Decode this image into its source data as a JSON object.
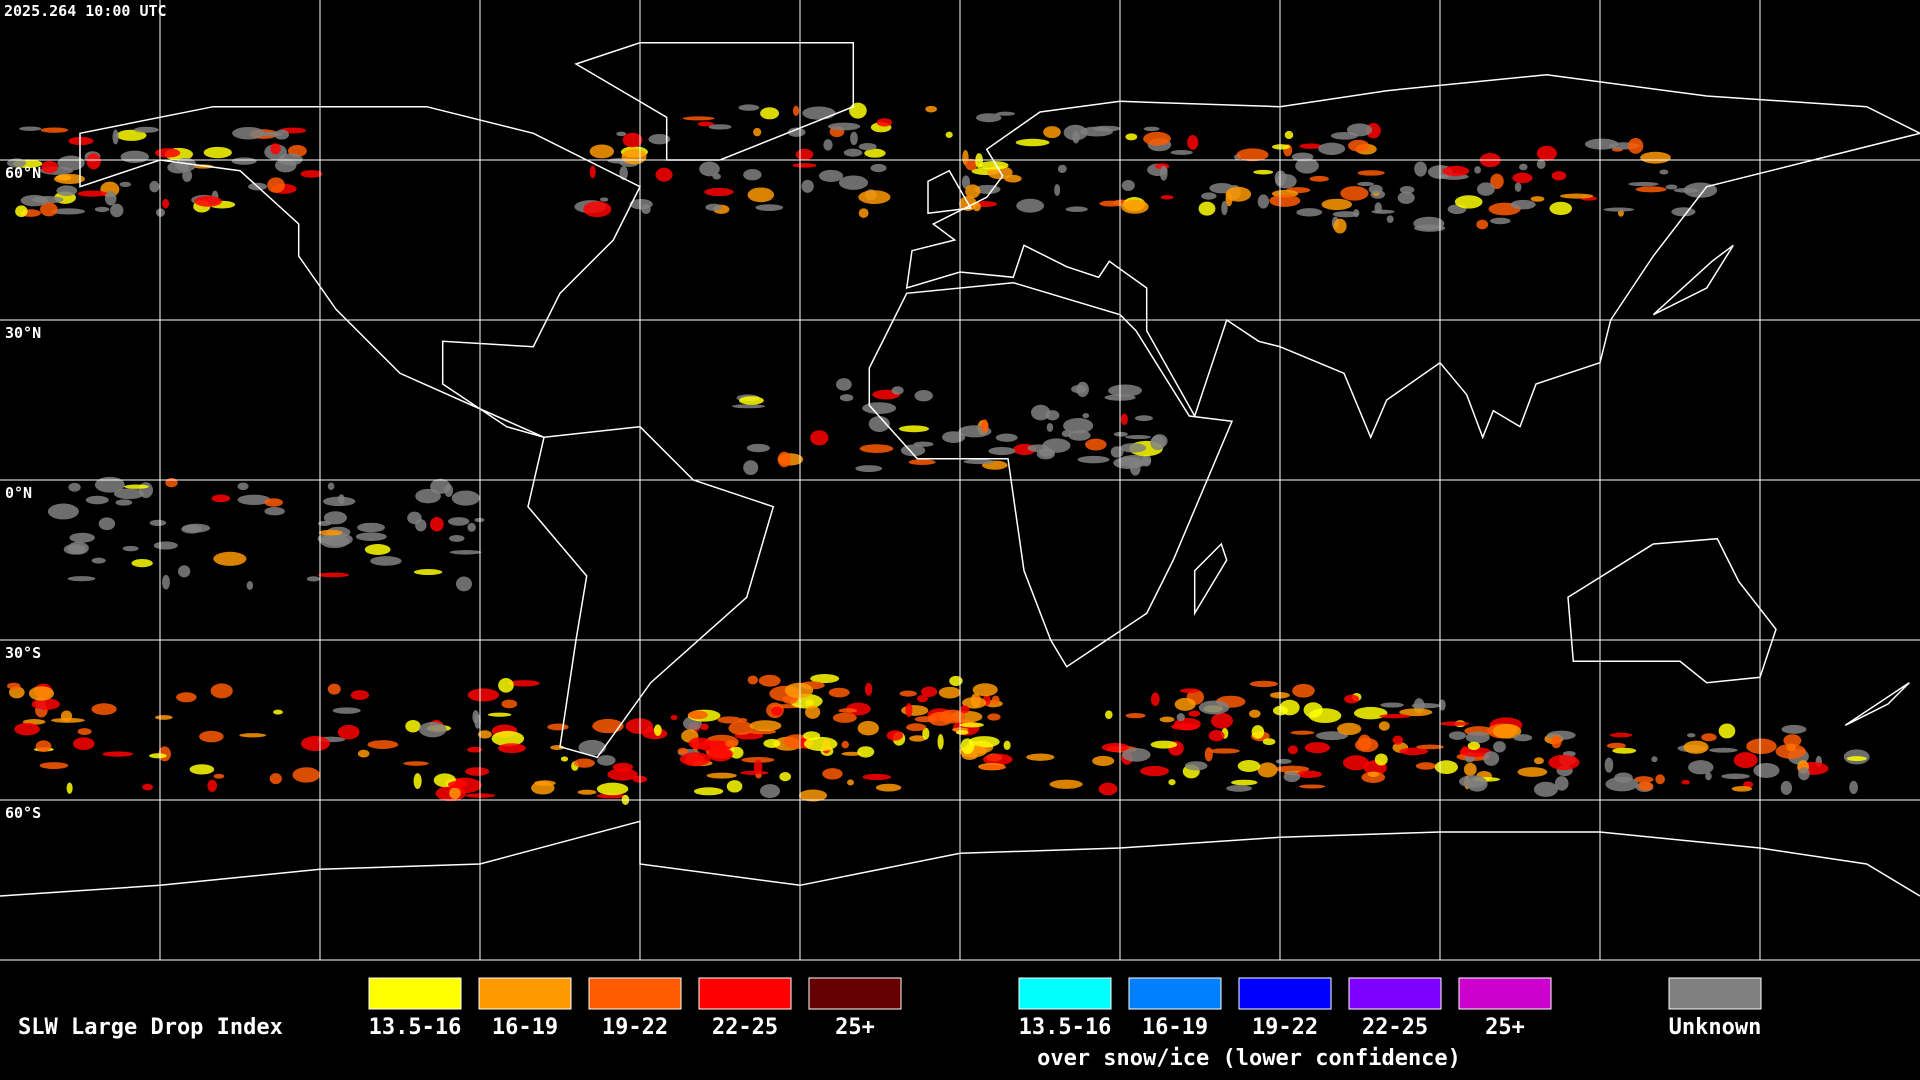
{
  "header": {
    "timestamp": "2025.264 10:00 UTC"
  },
  "latitude_labels": [
    "60°N",
    "30°N",
    "0°N",
    "30°S",
    "60°S"
  ],
  "legend": {
    "title": "SLW Large Drop Index",
    "groups": [
      {
        "items": [
          {
            "label": "13.5-16",
            "color": "#ffff00"
          },
          {
            "label": "16-19",
            "color": "#ff9900"
          },
          {
            "label": "19-22",
            "color": "#ff5a00"
          },
          {
            "label": "22-25",
            "color": "#ff0000"
          },
          {
            "label": "25+",
            "color": "#660000"
          }
        ]
      },
      {
        "items": [
          {
            "label": "13.5-16",
            "color": "#00ffff"
          },
          {
            "label": "16-19",
            "color": "#0080ff"
          },
          {
            "label": "19-22",
            "color": "#0000ff"
          },
          {
            "label": "22-25",
            "color": "#8000ff"
          },
          {
            "label": "25+",
            "color": "#cc00cc"
          }
        ],
        "caption": "over snow/ice (lower confidence)"
      },
      {
        "items": [
          {
            "label": "Unknown",
            "color": "#808080"
          }
        ]
      }
    ]
  }
}
